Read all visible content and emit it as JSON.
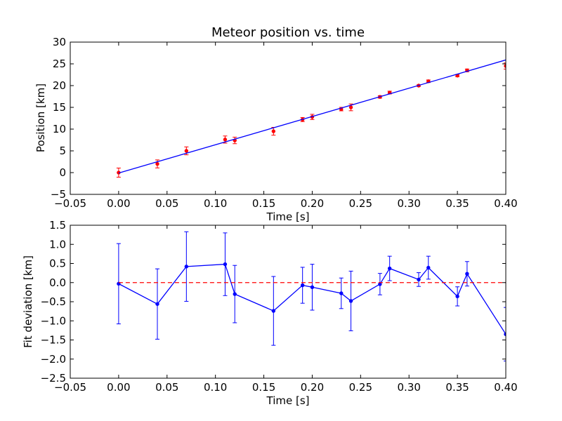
{
  "chart_data": [
    {
      "type": "scatter",
      "title": "Meteor position vs. time",
      "xlabel": "Time [s]",
      "ylabel": "Position [km]",
      "xlim": [
        -0.05,
        0.4
      ],
      "ylim": [
        -5,
        30
      ],
      "xticks": [
        -0.05,
        0.0,
        0.05,
        0.1,
        0.15,
        0.2,
        0.25,
        0.3,
        0.35,
        0.4
      ],
      "xtick_labels": [
        "−0.05",
        "0.00",
        "0.05",
        "0.10",
        "0.15",
        "0.20",
        "0.25",
        "0.30",
        "0.35",
        "0.40"
      ],
      "yticks": [
        -5,
        0,
        5,
        10,
        15,
        20,
        25,
        30
      ],
      "ytick_labels": [
        "−5",
        "0",
        "5",
        "10",
        "15",
        "20",
        "25",
        "30"
      ],
      "grid": false,
      "series": [
        {
          "kind": "errorbar",
          "color": "#ff0000",
          "x": [
            0.0,
            0.04,
            0.07,
            0.11,
            0.12,
            0.16,
            0.19,
            0.2,
            0.23,
            0.24,
            0.27,
            0.28,
            0.31,
            0.32,
            0.35,
            0.36,
            0.4
          ],
          "y": [
            0.0,
            2.0,
            5.0,
            7.6,
            7.4,
            9.5,
            12.2,
            12.8,
            14.6,
            15.0,
            17.4,
            18.4,
            20.0,
            21.0,
            22.3,
            23.5,
            24.5
          ],
          "yerr": [
            1.05,
            0.92,
            0.91,
            0.82,
            0.75,
            0.9,
            0.47,
            0.6,
            0.4,
            0.78,
            0.28,
            0.32,
            0.18,
            0.3,
            0.25,
            0.32,
            0.7
          ]
        },
        {
          "kind": "line",
          "color": "#0000ff",
          "x": [
            0.0,
            0.4
          ],
          "y": [
            -0.1,
            25.9
          ]
        }
      ]
    },
    {
      "type": "line",
      "title": "",
      "xlabel": "Time [s]",
      "ylabel": "Fit deviation [km]",
      "xlim": [
        -0.05,
        0.4
      ],
      "ylim": [
        -2.5,
        1.5
      ],
      "xticks": [
        -0.05,
        0.0,
        0.05,
        0.1,
        0.15,
        0.2,
        0.25,
        0.3,
        0.35,
        0.4
      ],
      "xtick_labels": [
        "−0.05",
        "0.00",
        "0.05",
        "0.10",
        "0.15",
        "0.20",
        "0.25",
        "0.30",
        "0.35",
        "0.40"
      ],
      "yticks": [
        -2.5,
        -2.0,
        -1.5,
        -1.0,
        -0.5,
        0.0,
        0.5,
        1.0,
        1.5
      ],
      "ytick_labels": [
        "−2.5",
        "−2.0",
        "−1.5",
        "−1.0",
        "−0.5",
        "0.0",
        "0.5",
        "1.0",
        "1.5"
      ],
      "grid": false,
      "series": [
        {
          "kind": "errorbar-line",
          "color": "#0000ff",
          "x": [
            0.0,
            0.04,
            0.07,
            0.11,
            0.12,
            0.16,
            0.19,
            0.2,
            0.23,
            0.24,
            0.27,
            0.28,
            0.31,
            0.32,
            0.35,
            0.36,
            0.4
          ],
          "y": [
            -0.03,
            -0.56,
            0.42,
            0.48,
            -0.3,
            -0.74,
            -0.07,
            -0.12,
            -0.28,
            -0.48,
            -0.04,
            0.37,
            0.08,
            0.39,
            -0.36,
            0.23,
            -1.35
          ],
          "yerr": [
            1.05,
            0.92,
            0.91,
            0.82,
            0.75,
            0.9,
            0.47,
            0.6,
            0.4,
            0.78,
            0.28,
            0.32,
            0.18,
            0.3,
            0.25,
            0.32,
            0.7
          ]
        },
        {
          "kind": "reference-line",
          "style": "dashed",
          "color": "#ff0000",
          "x": [
            0.0,
            0.4
          ],
          "y": [
            0.0,
            0.0
          ]
        }
      ]
    }
  ]
}
